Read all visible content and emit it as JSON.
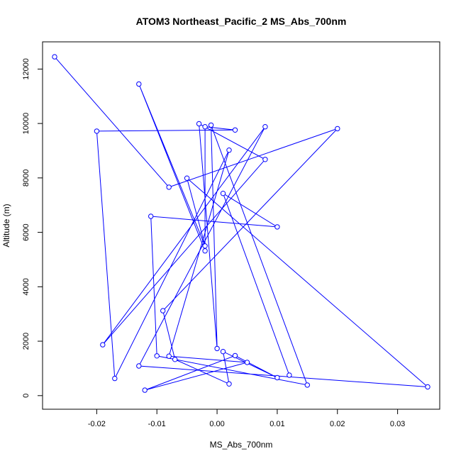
{
  "chart_data": {
    "type": "line",
    "title": "ATOM3 Northeast_Pacific_2 MS_Abs_700nm",
    "xlabel": "MS_Abs_700nm",
    "ylabel": "Altitude (m)",
    "xlim": [
      -0.029,
      0.037
    ],
    "ylim": [
      -500,
      13000
    ],
    "xticks": [
      -0.02,
      -0.01,
      0.0,
      0.01,
      0.02,
      0.03
    ],
    "xtick_labels": [
      "-0.02",
      "-0.01",
      "0.00",
      "0.01",
      "0.02",
      "0.03"
    ],
    "yticks": [
      0,
      2000,
      4000,
      6000,
      8000,
      10000,
      12000
    ],
    "ytick_labels": [
      "0",
      "2000",
      "4000",
      "6000",
      "8000",
      "10000",
      "12000"
    ],
    "grid": false,
    "line_color": "#0000ff",
    "marker": "open-circle",
    "series": [
      {
        "points": [
          [
            -0.027,
            12450
          ],
          [
            -0.008,
            7660
          ],
          [
            0.02,
            9810
          ],
          [
            -0.009,
            3120
          ],
          [
            -0.007,
            1330
          ],
          [
            0.002,
            430
          ],
          [
            0.001,
            1620
          ],
          [
            0.01,
            660
          ],
          [
            0.003,
            1470
          ],
          [
            -0.012,
            200
          ],
          [
            0.005,
            1220
          ],
          [
            -0.008,
            1450
          ],
          [
            0.002,
            9020
          ],
          [
            -0.017,
            630
          ],
          [
            -0.02,
            9720
          ],
          [
            0.003,
            9760
          ],
          [
            -0.002,
            9880
          ],
          [
            -0.002,
            5320
          ],
          [
            -0.013,
            11450
          ],
          [
            -0.002,
            5500
          ],
          [
            -0.005,
            7990
          ],
          [
            0.035,
            320
          ],
          [
            -0.013,
            1090
          ],
          [
            0.008,
            9880
          ],
          [
            -0.019,
            1870
          ],
          [
            0.008,
            8680
          ],
          [
            -0.003,
            9990
          ],
          [
            0.0,
            1730
          ],
          [
            -0.001,
            9940
          ],
          [
            0.015,
            390
          ],
          [
            -0.01,
            1460
          ],
          [
            -0.011,
            6590
          ],
          [
            0.01,
            6200
          ],
          [
            0.001,
            7430
          ],
          [
            0.012,
            750
          ]
        ]
      }
    ]
  }
}
